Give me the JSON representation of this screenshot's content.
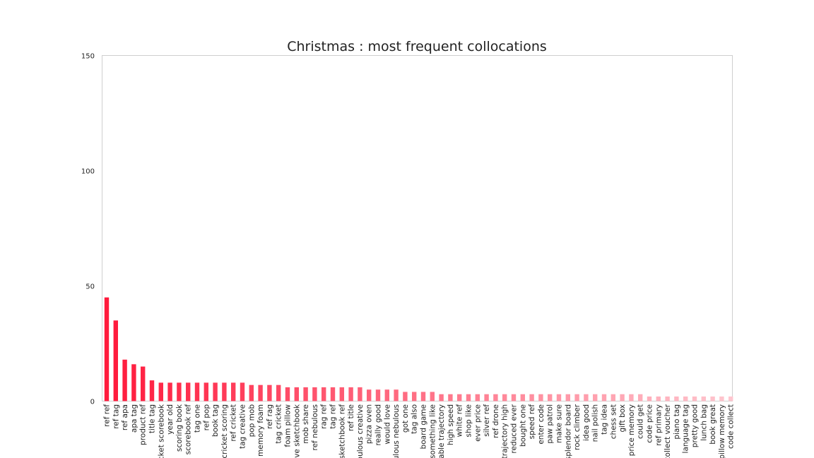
{
  "chart_data": {
    "type": "bar",
    "title": "Christmas : most frequent collocations",
    "xlabel": "",
    "ylabel": "",
    "ylim": [
      0,
      150
    ],
    "yticks": [
      0,
      50,
      100,
      150
    ],
    "grid": false,
    "legend": "none",
    "bar_color_start": "#ff1a3c",
    "bar_color_end": "#ffc6cf",
    "categories": [
      "ref ref",
      "ref tag",
      "ref apa",
      "apa tag",
      "product ref",
      "title tag",
      "cricket scorebook",
      "year old",
      "scoring book",
      "scorebook ref",
      "tag one",
      "ref pop",
      "book tag",
      "cricket scoring",
      "ref cricket",
      "tag creative",
      "pop mob",
      "memory foam",
      "ref rag",
      "tag cricket",
      "foam pillow",
      "creative sketchbook",
      "mob share",
      "ref nebulous",
      "rag ref",
      "tag ref",
      "sketchbook ref",
      "ref title",
      "nebulous creative",
      "pizza oven",
      "really good",
      "would love",
      "nebulous nebulous",
      "got one",
      "tag also",
      "board game",
      "something like",
      "variable trajectory",
      "high speed",
      "white ref",
      "shop like",
      "ever price",
      "silver ref",
      "ref drone",
      "trajectory high",
      "reduced ever",
      "bought one",
      "speed ref",
      "enter code",
      "paw patrol",
      "make sure",
      "splendor board",
      "rock climber",
      "idea good",
      "nail polish",
      "tag idea",
      "chess set",
      "gift box",
      "price memory",
      "could get",
      "code price",
      "ref primary",
      "collect voucher",
      "piano tag",
      "language tag",
      "pretty good",
      "lunch bag",
      "book great",
      "pillow memory",
      "code collect"
    ],
    "values": [
      45,
      35,
      18,
      16,
      15,
      9,
      8,
      8,
      8,
      8,
      8,
      8,
      8,
      8,
      8,
      8,
      7,
      7,
      7,
      7,
      6,
      6,
      6,
      6,
      6,
      6,
      6,
      6,
      6,
      5,
      5,
      5,
      5,
      4,
      4,
      4,
      4,
      3,
      3,
      3,
      3,
      3,
      3,
      3,
      3,
      3,
      3,
      3,
      3,
      3,
      3,
      3,
      3,
      3,
      3,
      3,
      3,
      3,
      3,
      3,
      2,
      2,
      2,
      2,
      2,
      2,
      2,
      2,
      2,
      2
    ]
  }
}
